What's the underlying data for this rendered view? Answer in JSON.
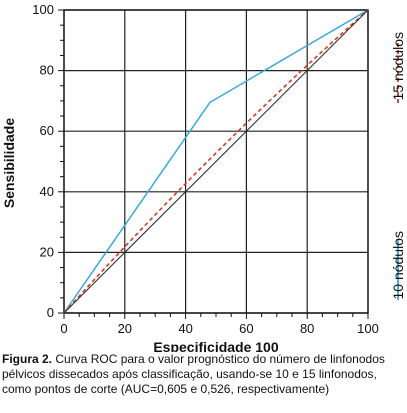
{
  "chart_data": {
    "type": "line",
    "xlabel": "Especificidade 100",
    "ylabel": "Sensibilidade",
    "xlim": [
      0,
      100
    ],
    "ylim": [
      0,
      100
    ],
    "xticks": [
      "0",
      "20",
      "40",
      "60",
      "80",
      "100"
    ],
    "yticks": [
      "0",
      "20",
      "40",
      "60",
      "80",
      "100"
    ],
    "grid": true,
    "legend_position": "right, vertical",
    "series": [
      {
        "name": "10 nódulos",
        "style": "solid",
        "color": "#3aa8dc",
        "x": [
          0,
          48,
          100
        ],
        "y": [
          0,
          69.5,
          100
        ]
      },
      {
        "name": "15 nódulos",
        "style": "dashed",
        "color": "#d23a1e",
        "x": [
          0,
          100
        ],
        "y": [
          0,
          100
        ],
        "bow": 0.028
      },
      {
        "name": "",
        "style": "solid",
        "color": "#333333",
        "x": [
          0,
          100
        ],
        "y": [
          0,
          100
        ]
      }
    ]
  },
  "caption": {
    "label": "Figura 2.",
    "text": " Curva ROC para o valor prognóstico do número de linfonodos pélvicos dissecados após classificação, usando-se 10 e 15 linfonodos, como pontos de corte (AUC=0,605 e 0,526, respectivamente)"
  }
}
